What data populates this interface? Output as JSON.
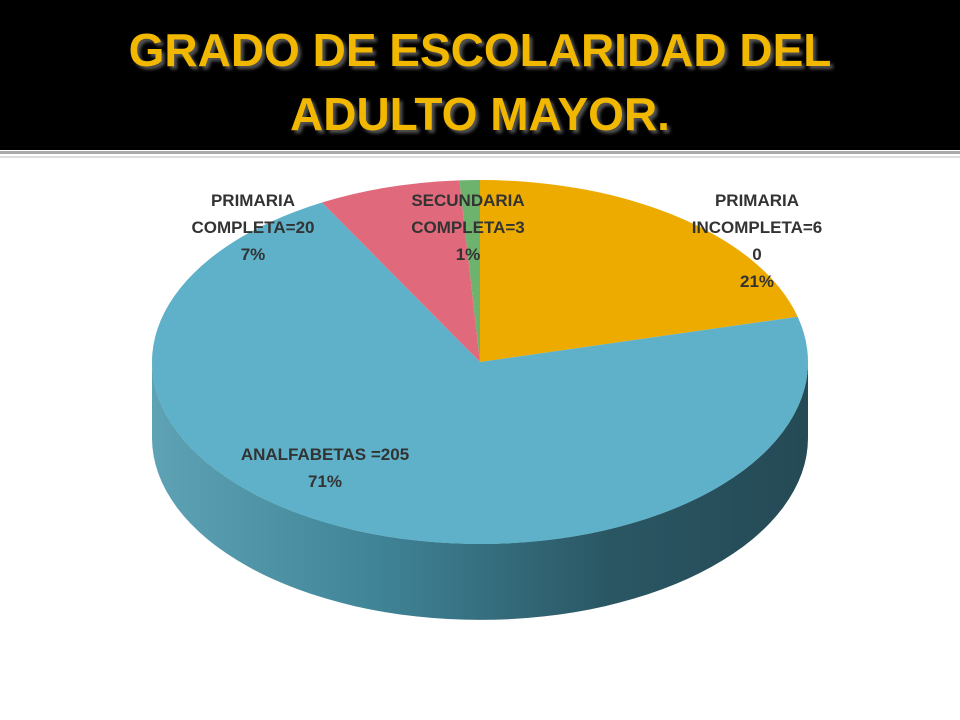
{
  "chart_data": {
    "type": "pie",
    "title": "GRADO DE ESCOLARIDAD DEL ADULTO MAYOR.",
    "categories": [
      "PRIMARIA INCOMPLETA=60",
      "ANALFABETAS =205",
      "PRIMARIA COMPLETA=20",
      "SECUNDARIA COMPLETA=3"
    ],
    "values": [
      21,
      71,
      7,
      1
    ],
    "value_labels": [
      "21%",
      "71%",
      "7%",
      "1%"
    ],
    "colors": [
      "#edab00",
      "#5eb1c8",
      "#e06a7b",
      "#6db36d"
    ]
  }
}
